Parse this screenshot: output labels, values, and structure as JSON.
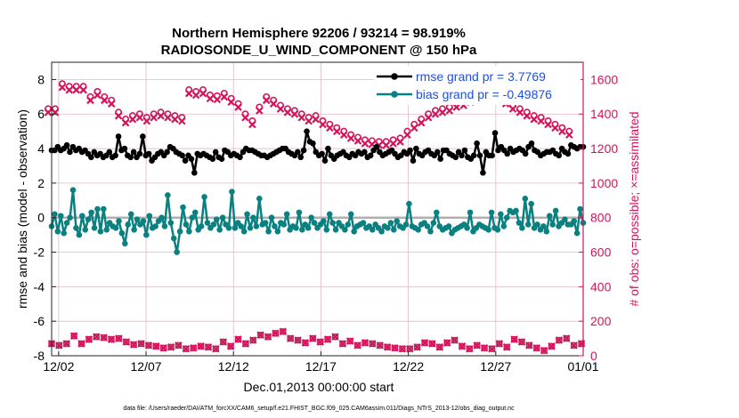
{
  "chart_data": {
    "type": "line",
    "title": [
      "Northern Hemisphere 92206 / 93214 = 98.919%",
      "RADIOSONDE_U_WIND_COMPONENT @ 150 hPa"
    ],
    "xlabel": "Dec.01,2013 00:00:00 start",
    "ylabel": "rmse and bias (model - observation)",
    "ylabel_right": "# of obs: o=possible; ×=assimilated",
    "footnote": "data file: /Users/raeder/DAI/ATM_forcXX/CAM6_setup/f.e21.FHIST_BGC.f09_025.CAM6assim.011/Diags_NTrS_2013-12/obs_diag_output.nc",
    "xlim": [
      0.6,
      31.0
    ],
    "ylim": [
      -8,
      9
    ],
    "ylim_right": [
      0,
      1700
    ],
    "x_ticks": [
      1,
      6,
      11,
      16,
      21,
      26,
      31
    ],
    "x_tick_labels": [
      "12/02",
      "12/07",
      "12/12",
      "12/17",
      "12/22",
      "12/27",
      "01/01"
    ],
    "y_ticks": [
      -8,
      -6,
      -4,
      -2,
      0,
      2,
      4,
      6,
      8
    ],
    "y_tick_labels": [
      "-8",
      "-6",
      "-4",
      "-2",
      "0",
      "2",
      "4",
      "6",
      "8"
    ],
    "y_ticks_right": [
      0,
      200,
      400,
      600,
      800,
      1000,
      1200,
      1400,
      1600
    ],
    "y_tick_labels_right": [
      "0",
      "200",
      "400",
      "600",
      "800",
      "1000",
      "1200",
      "1400",
      "1600"
    ],
    "colors": {
      "rmse": "#000000",
      "bias": "#0b8080",
      "obs": "#d4145a",
      "zero_line": "#b0b0b0",
      "grid": "#e2b8c8",
      "legend_text": "#1f4fe0"
    },
    "series": [
      {
        "name": "rmse grand pr = 3.7769",
        "values": [
          3.9,
          3.9,
          4.1,
          3.9,
          4.0,
          4.2,
          3.8,
          4.1,
          3.9,
          4.0,
          3.8,
          3.9,
          3.7,
          3.5,
          3.8,
          3.6,
          3.7,
          3.5,
          3.6,
          3.8,
          3.5,
          3.6,
          4.7,
          3.9,
          4.0,
          3.6,
          3.5,
          3.8,
          3.5,
          3.7,
          4.7,
          3.6,
          3.7,
          3.3,
          3.5,
          3.7,
          3.8,
          3.6,
          3.8,
          4.1,
          4.0,
          3.8,
          3.7,
          3.6,
          3.3,
          3.6,
          3.4,
          2.6,
          3.7,
          3.6,
          3.7,
          3.6,
          3.5,
          3.4,
          3.8,
          3.5,
          3.4,
          3.9,
          3.8,
          3.6,
          3.7,
          3.6,
          3.5,
          3.8,
          4.0,
          3.9,
          3.9,
          3.8,
          3.7,
          3.6,
          3.6,
          3.5,
          3.6,
          3.7,
          3.8,
          3.9,
          4.0,
          4.0,
          3.8,
          3.7,
          3.6,
          3.8,
          3.5,
          3.9,
          5.0,
          4.4,
          4.3,
          3.8,
          3.6,
          3.7,
          3.3,
          4.0,
          3.6,
          3.4,
          3.6,
          3.7,
          3.8,
          3.6,
          3.5,
          3.7,
          3.6,
          3.8,
          3.7,
          3.8,
          3.5,
          3.6,
          3.9,
          4.1,
          3.8,
          3.6,
          3.7,
          3.8,
          3.9,
          3.7,
          3.5,
          3.6,
          3.8,
          3.7,
          3.9,
          3.3,
          4.0,
          3.7,
          3.6,
          3.8,
          3.9,
          3.7,
          3.6,
          3.8,
          3.4,
          3.9,
          3.9,
          3.7,
          3.6,
          3.5,
          3.8,
          3.6,
          3.9,
          3.5,
          3.4,
          3.6,
          4.3,
          3.6,
          2.6,
          3.8,
          3.6,
          3.6,
          4.9,
          3.9,
          4.1,
          3.9,
          3.7,
          4.0,
          3.8,
          3.9,
          4.0,
          3.9,
          3.7,
          4.1,
          4.3,
          3.9,
          3.8,
          3.6,
          3.7,
          3.8,
          3.8,
          3.9,
          3.7,
          3.6,
          4.0,
          3.8,
          3.7,
          4.2,
          4.1,
          4.0,
          4.1,
          4.1
        ]
      },
      {
        "name": "bias grand pr = -0.49876",
        "values": [
          -0.5,
          0.2,
          -0.8,
          0.1,
          -0.9,
          -0.3,
          0.0,
          1.6,
          -0.6,
          -1.0,
          0.1,
          -0.7,
          -0.1,
          0.3,
          -0.6,
          0.5,
          -0.8,
          0.5,
          -0.7,
          -0.3,
          -0.5,
          -0.6,
          -0.2,
          -0.9,
          -1.5,
          -0.4,
          0.2,
          -0.7,
          -0.1,
          -0.4,
          -0.2,
          -1.0,
          0.1,
          -0.6,
          -0.5,
          -0.2,
          0.0,
          -0.5,
          1.3,
          -0.3,
          -1.2,
          -2.0,
          -0.8,
          0.6,
          -0.4,
          -0.8,
          0.0,
          0.3,
          -0.7,
          -0.5,
          1.2,
          -0.3,
          -0.6,
          -0.4,
          -0.1,
          -0.7,
          0.0,
          -0.4,
          -0.6,
          1.5,
          -0.6,
          -0.3,
          -0.5,
          -0.8,
          0.2,
          -0.6,
          0.0,
          -0.5,
          1.1,
          -0.4,
          -0.3,
          -0.8,
          0.0,
          -0.5,
          -0.8,
          -0.3,
          -0.4,
          0.2,
          -0.7,
          -0.5,
          -0.6,
          0.3,
          -0.7,
          -0.4,
          -0.6,
          0.0,
          -0.3,
          -0.6,
          -0.4,
          -0.2,
          -0.7,
          0.2,
          -0.3,
          -0.7,
          -0.3,
          -0.5,
          -0.7,
          -0.4,
          0.2,
          -0.8,
          -0.5,
          -0.4,
          -0.3,
          -0.6,
          -0.5,
          -0.7,
          -0.4,
          -0.6,
          -0.8,
          -0.5,
          -0.6,
          -0.3,
          -0.7,
          -0.2,
          -0.5,
          -0.6,
          -0.4,
          0.8,
          -0.5,
          -0.6,
          -0.7,
          -0.4,
          -0.3,
          -0.5,
          -0.8,
          -0.3,
          0.3,
          -0.5,
          -0.7,
          -0.6,
          -0.5,
          -0.9,
          -0.7,
          -0.6,
          -0.5,
          -0.4,
          -0.6,
          0.3,
          -0.8,
          -0.6,
          -0.4,
          -0.5,
          -0.6,
          -0.7,
          0.3,
          -0.6,
          -0.7,
          0.2,
          -0.5,
          0.0,
          0.4,
          0.3,
          0.4,
          -0.3,
          -0.6,
          1.1,
          -0.4,
          0.8,
          -0.6,
          -0.4,
          -0.7,
          -0.5,
          -0.8,
          0.1,
          -0.4,
          0.4,
          -0.5,
          -0.3,
          -0.1,
          -0.4,
          -0.4,
          -0.2,
          -0.9,
          0.5,
          -0.3
        ]
      },
      {
        "name": "possible obs (o)",
        "axis": "right",
        "values": [
          1430,
          1430,
          1575,
          1560,
          1560,
          1560,
          1500,
          1530,
          1500,
          1480,
          1410,
          1370,
          1390,
          1400,
          1380,
          1400,
          1410,
          1400,
          1390,
          1380,
          1540,
          1530,
          1540,
          1510,
          1505,
          1520,
          1490,
          1460,
          1400,
          1360,
          1440,
          1500,
          1480,
          1450,
          1430,
          1420,
          1400,
          1380,
          1390,
          1360,
          1340,
          1320,
          1300,
          1280,
          1265,
          1250,
          1245,
          1240,
          1240,
          1250,
          1260,
          1300,
          1340,
          1370,
          1400,
          1420,
          1430,
          1440,
          1460,
          1470,
          1490,
          1510,
          1530,
          1545,
          1510,
          1480,
          1450,
          1430,
          1410,
          1390,
          1380,
          1360,
          1340,
          1320,
          1300
        ]
      },
      {
        "name": "assimilated obs (×)",
        "axis": "right",
        "values": [
          70,
          60,
          70,
          115,
          70,
          95,
          110,
          105,
          95,
          100,
          80,
          65,
          70,
          60,
          55,
          45,
          50,
          60,
          40,
          45,
          55,
          50,
          40,
          80,
          55,
          95,
          70,
          90,
          120,
          110,
          130,
          140,
          100,
          90,
          75,
          100,
          80,
          95,
          110,
          70,
          85,
          60,
          75,
          70,
          60,
          50,
          45,
          40,
          40,
          50,
          75,
          70,
          50,
          75,
          90,
          55,
          40,
          60,
          45,
          40,
          70,
          50,
          95,
          80,
          60,
          45,
          30,
          55,
          90,
          100,
          60,
          70
        ]
      }
    ]
  }
}
